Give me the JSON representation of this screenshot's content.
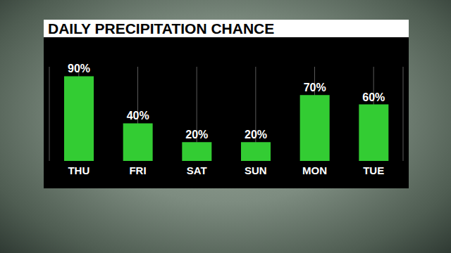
{
  "chart_data": {
    "type": "bar",
    "title": "DAILY PRECIPITATION CHANCE",
    "categories": [
      "THU",
      "FRI",
      "SAT",
      "SUN",
      "MON",
      "TUE"
    ],
    "values": [
      90,
      40,
      20,
      20,
      70,
      60
    ],
    "value_labels": [
      "90%",
      "40%",
      "20%",
      "20%",
      "70%",
      "60%"
    ],
    "color": "#33cc33",
    "ylim": [
      0,
      100
    ],
    "grid": true,
    "data_labels": true,
    "tick_labels": "x"
  }
}
